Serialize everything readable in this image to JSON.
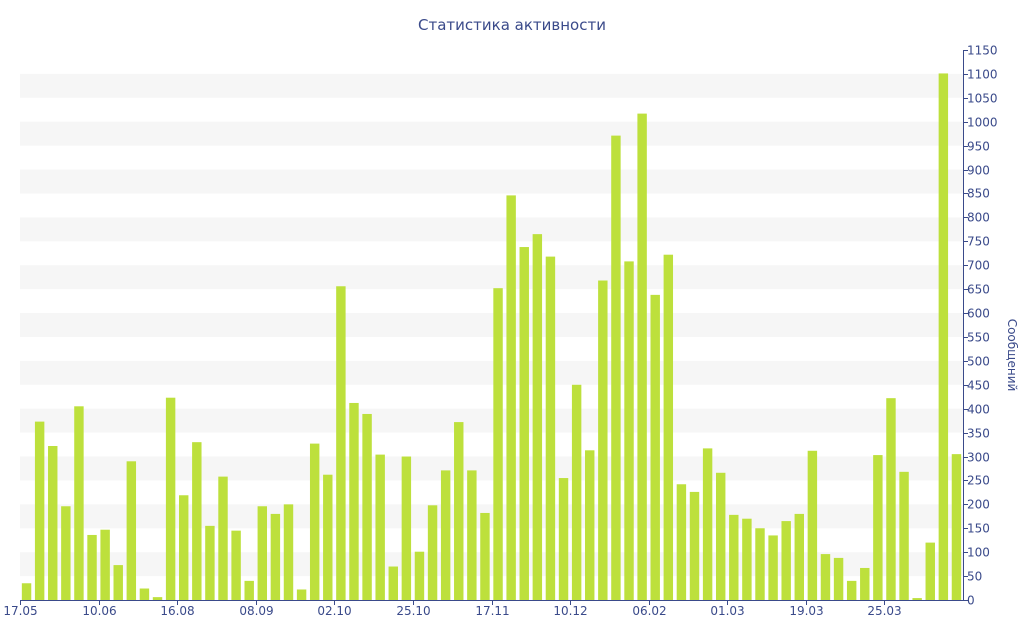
{
  "chart_data": {
    "type": "bar",
    "title": "Статистика активности",
    "ylabel": "Сообщений",
    "xlabel": "",
    "ylim": [
      0,
      1150
    ],
    "yticks": [
      0,
      50,
      100,
      150,
      200,
      250,
      300,
      350,
      400,
      450,
      500,
      550,
      600,
      650,
      700,
      750,
      800,
      850,
      900,
      950,
      1000,
      1050,
      1100,
      1150
    ],
    "xtick_labels": [
      {
        "label": "17.05",
        "index": 0
      },
      {
        "label": "10.06",
        "index": 6
      },
      {
        "label": "16.08",
        "index": 12
      },
      {
        "label": "08.09",
        "index": 18
      },
      {
        "label": "02.10",
        "index": 24
      },
      {
        "label": "25.10",
        "index": 30
      },
      {
        "label": "17.11",
        "index": 36
      },
      {
        "label": "10.12",
        "index": 42
      },
      {
        "label": "06.02",
        "index": 48
      },
      {
        "label": "01.03",
        "index": 54
      },
      {
        "label": "19.03",
        "index": 60
      },
      {
        "label": "25.03",
        "index": 66
      }
    ],
    "values": [
      35,
      373,
      322,
      196,
      405,
      136,
      147,
      73,
      290,
      24,
      6,
      423,
      219,
      330,
      155,
      258,
      145,
      40,
      196,
      180,
      200,
      22,
      327,
      262,
      656,
      412,
      389,
      304,
      70,
      300,
      101,
      198,
      271,
      372,
      271,
      182,
      652,
      846,
      738,
      765,
      718,
      255,
      450,
      313,
      668,
      971,
      708,
      1017,
      638,
      722,
      242,
      226,
      317,
      266,
      178,
      170,
      150,
      135,
      165,
      180,
      312,
      96,
      88,
      40,
      67,
      303,
      422,
      268,
      4,
      120,
      1101,
      305
    ],
    "bar_color": "#bde03c",
    "band_color": "#f6f6f6",
    "axis_color": "#3a4a8a",
    "grid": "alternating horizontal bands",
    "y_axis_side": "right"
  }
}
